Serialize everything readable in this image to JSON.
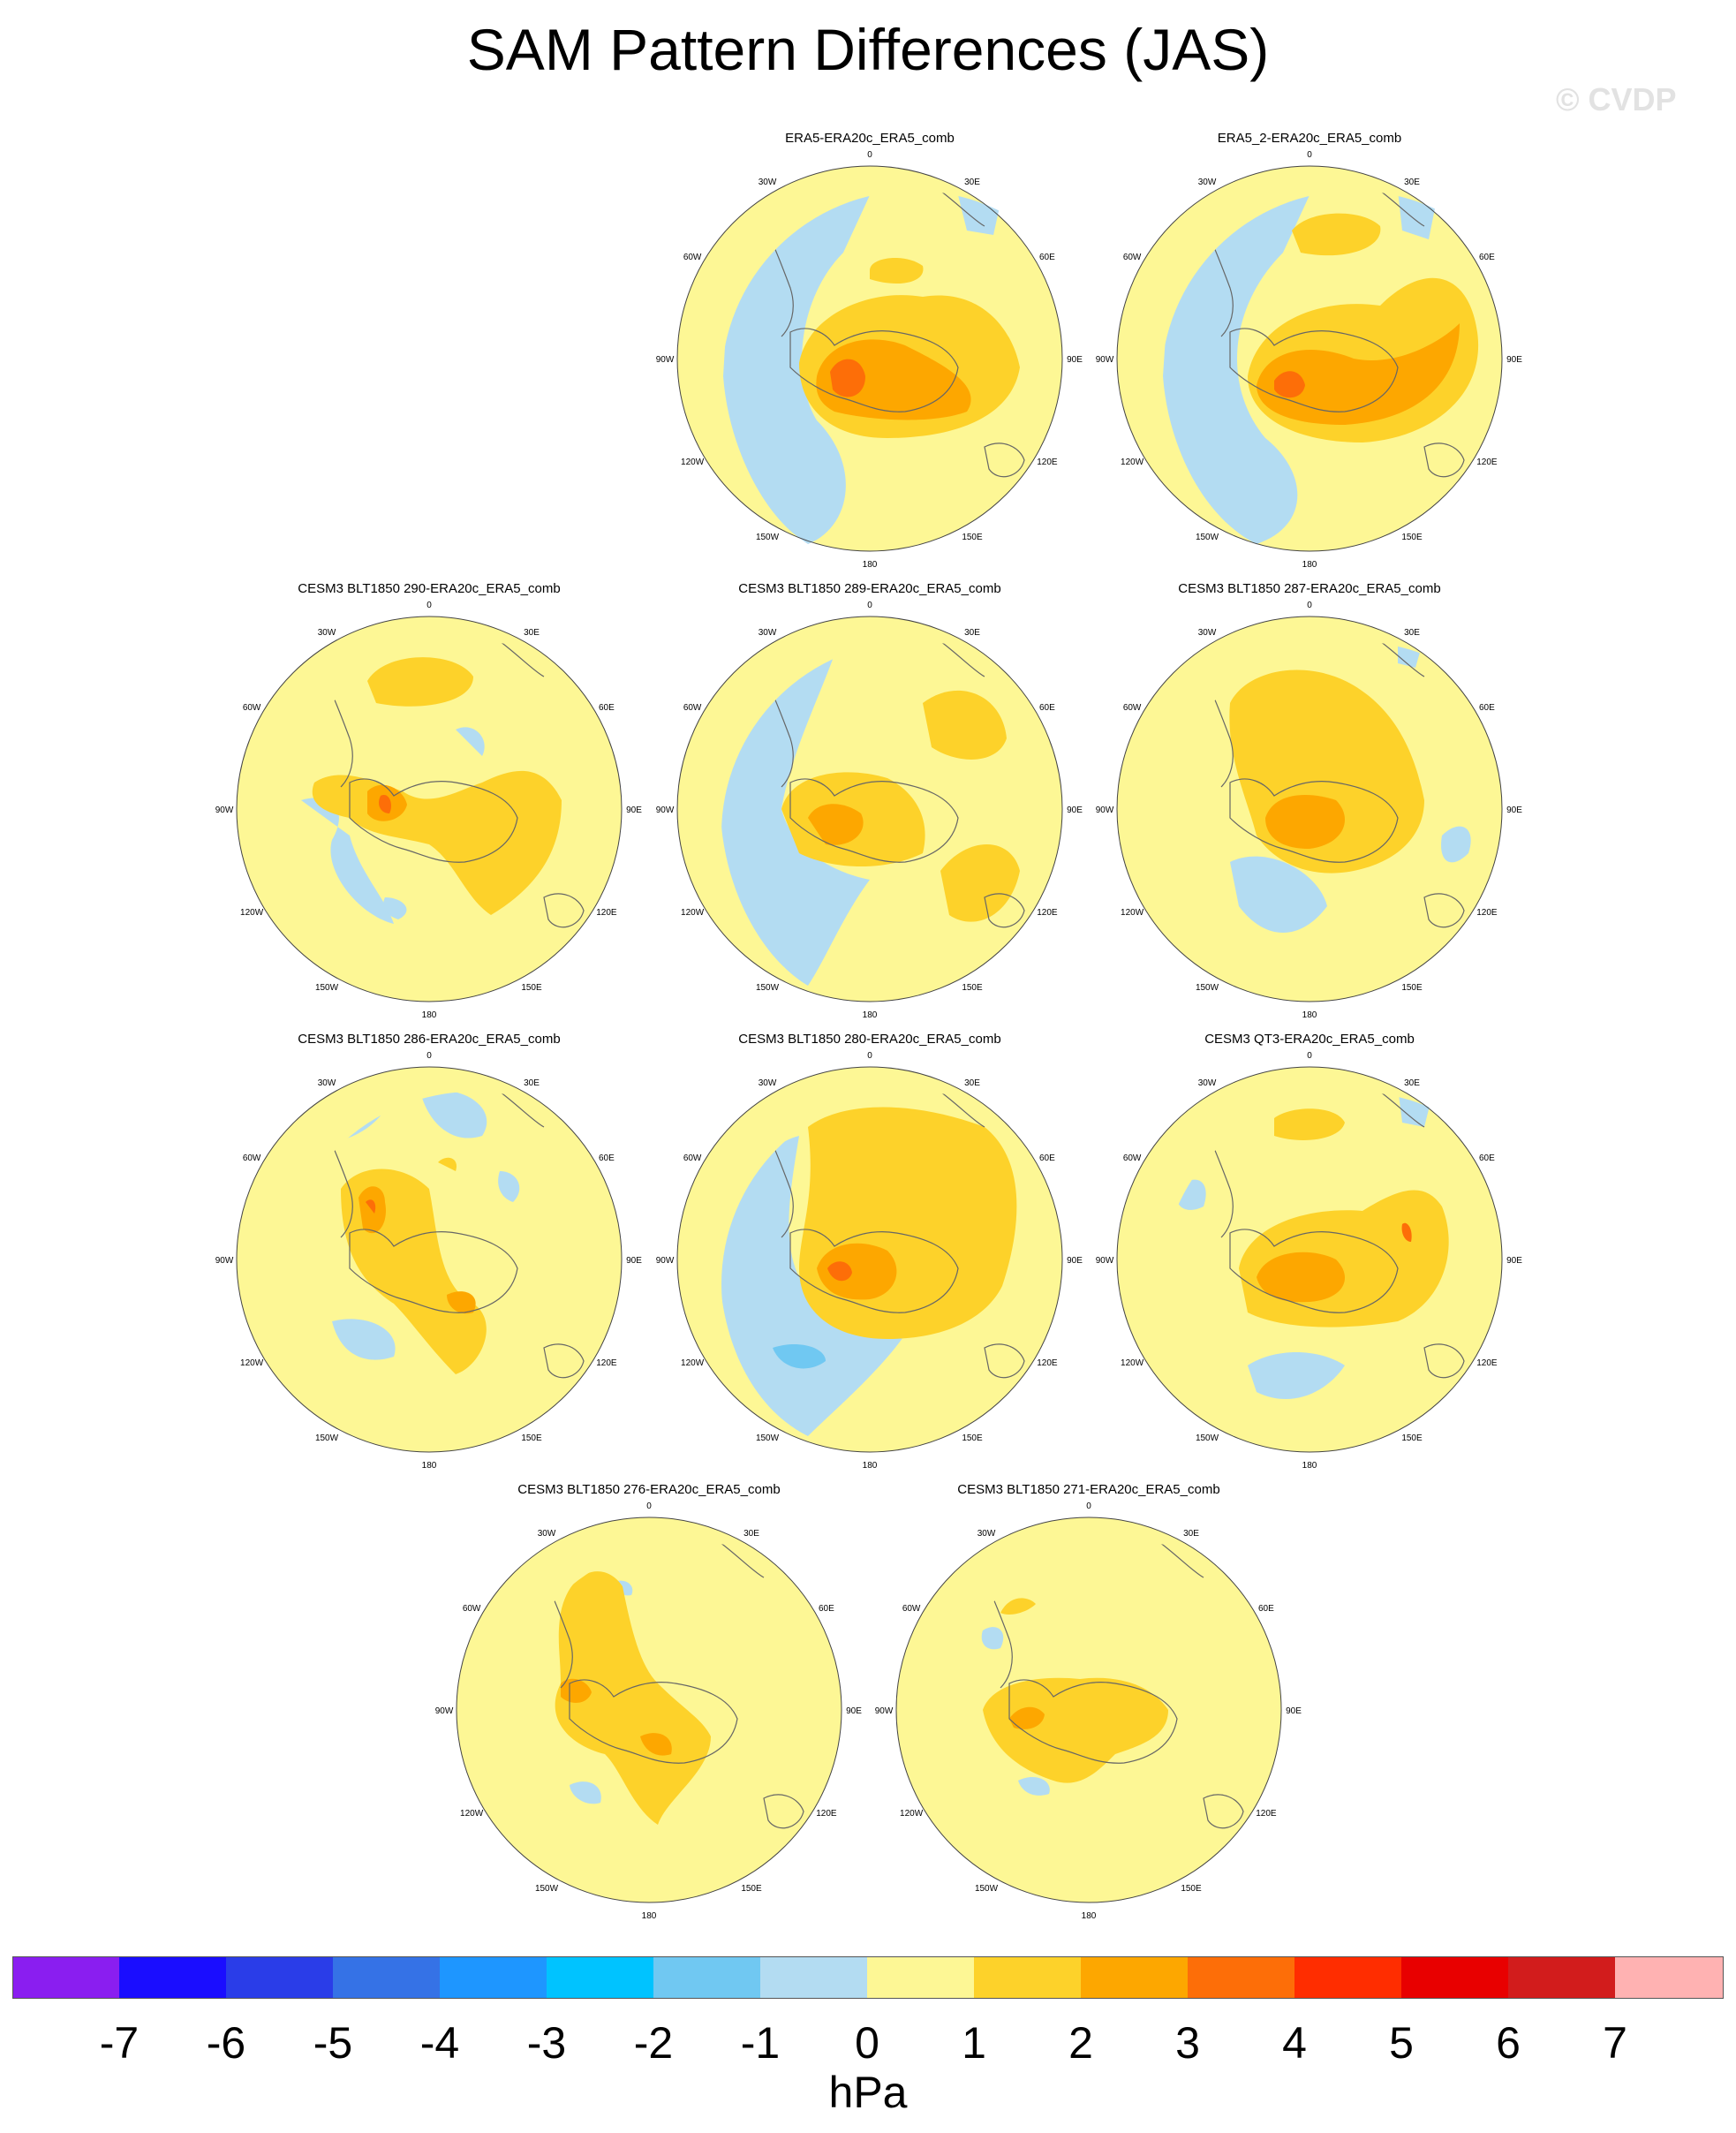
{
  "title": "SAM Pattern Differences (JAS)",
  "watermark": "© CVDP",
  "lon_labels": [
    "0",
    "30E",
    "60E",
    "90E",
    "120E",
    "150E",
    "180",
    "150W",
    "120W",
    "90W",
    "60W",
    "30W"
  ],
  "panels": [
    {
      "title": "ERA5-ERA20c_ERA5_comb",
      "max_anomaly_hPa": 4,
      "min_anomaly_hPa": -1
    },
    {
      "title": "ERA5_2-ERA20c_ERA5_comb",
      "max_anomaly_hPa": 4,
      "min_anomaly_hPa": -1
    },
    {
      "title": "CESM3 BLT1850 290-ERA20c_ERA5_comb",
      "max_anomaly_hPa": 4,
      "min_anomaly_hPa": -1
    },
    {
      "title": "CESM3 BLT1850 289-ERA20c_ERA5_comb",
      "max_anomaly_hPa": 3,
      "min_anomaly_hPa": -1
    },
    {
      "title": "CESM3 BLT1850 287-ERA20c_ERA5_comb",
      "max_anomaly_hPa": 3,
      "min_anomaly_hPa": -1
    },
    {
      "title": "CESM3 BLT1850 286-ERA20c_ERA5_comb",
      "max_anomaly_hPa": 4,
      "min_anomaly_hPa": -1
    },
    {
      "title": "CESM3 BLT1850 280-ERA20c_ERA5_comb",
      "max_anomaly_hPa": 4,
      "min_anomaly_hPa": -2
    },
    {
      "title": "CESM3 QT3-ERA20c_ERA5_comb",
      "max_anomaly_hPa": 3,
      "min_anomaly_hPa": -1
    },
    {
      "title": "CESM3 BLT1850 276-ERA20c_ERA5_comb",
      "max_anomaly_hPa": 3,
      "min_anomaly_hPa": -1
    },
    {
      "title": "CESM3 BLT1850 271-ERA20c_ERA5_comb",
      "max_anomaly_hPa": 3,
      "min_anomaly_hPa": -1
    }
  ],
  "colorbar": {
    "ticks": [
      "-7",
      "-6",
      "-5",
      "-4",
      "-3",
      "-2",
      "-1",
      "0",
      "1",
      "2",
      "3",
      "4",
      "5",
      "6",
      "7"
    ],
    "colors": [
      "#8a1ef0",
      "#1a0dff",
      "#2a3de8",
      "#3572e6",
      "#1e96ff",
      "#00c3ff",
      "#70c8f2",
      "#b3dcf2",
      "#fdf795",
      "#fdd22a",
      "#fda700",
      "#fd6e08",
      "#ff2d00",
      "#e80000",
      "#d21c1c",
      "#ffb2b2"
    ],
    "unit": "hPa"
  },
  "colors": {
    "negative_light": "#b3dcf2",
    "negative_medium": "#70c8f2",
    "near_zero": "#fdf795",
    "plus1": "#fdd22a",
    "plus2": "#fda700",
    "plus3": "#fd6e08",
    "coastline": "#666666"
  }
}
